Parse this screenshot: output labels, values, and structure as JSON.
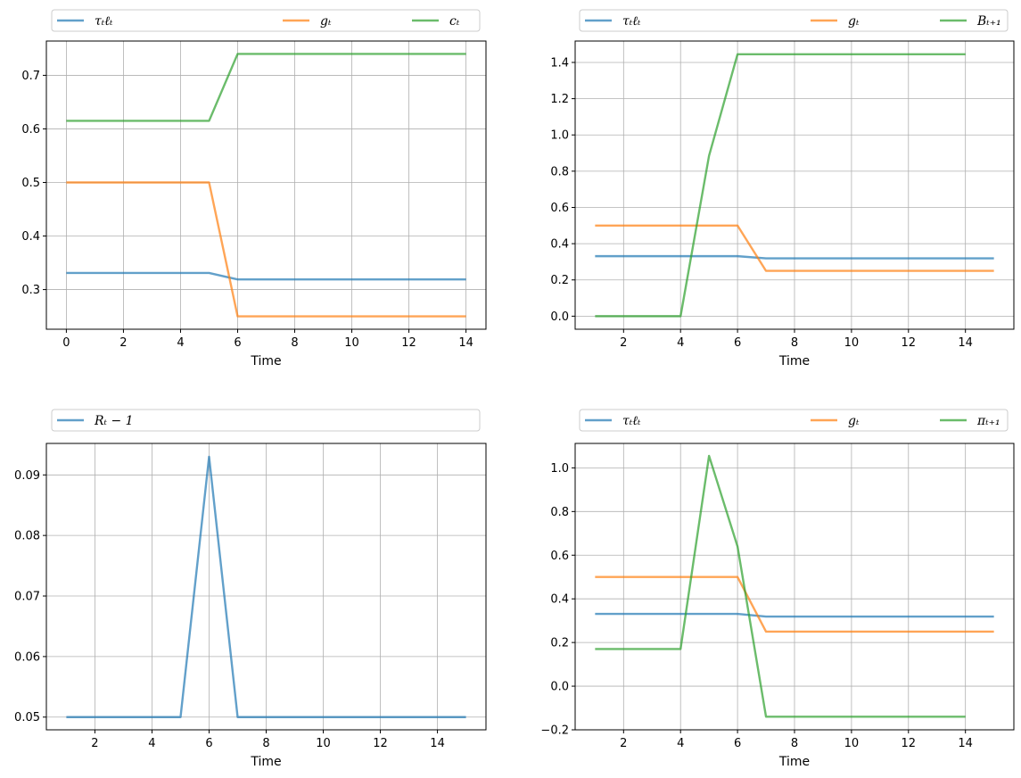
{
  "colors": {
    "blue": "#1f77b4",
    "orange": "#ff7f0e",
    "green": "#2ca02c",
    "grid": "#b0b0b0"
  },
  "chart_data": [
    {
      "type": "line",
      "xlabel": "Time",
      "xlim": [
        -0.7,
        14.7
      ],
      "ylim": [
        0.226,
        0.764
      ],
      "xticks": [
        0,
        2,
        4,
        6,
        8,
        10,
        12,
        14
      ],
      "yticks": [
        0.3,
        0.4,
        0.5,
        0.6,
        0.7
      ],
      "ytick_labels": [
        "0.3",
        "0.4",
        "0.5",
        "0.6",
        "0.7"
      ],
      "grid": true,
      "legend_position": "above",
      "series": [
        {
          "name": "τₜℓₜ",
          "color": "blue",
          "x": [
            0,
            1,
            2,
            3,
            4,
            5,
            6,
            7,
            8,
            9,
            10,
            11,
            12,
            13,
            14
          ],
          "y": [
            0.331,
            0.331,
            0.331,
            0.331,
            0.331,
            0.331,
            0.319,
            0.319,
            0.319,
            0.319,
            0.319,
            0.319,
            0.319,
            0.319,
            0.319
          ]
        },
        {
          "name": "gₜ",
          "color": "orange",
          "x": [
            0,
            1,
            2,
            3,
            4,
            5,
            6,
            7,
            8,
            9,
            10,
            11,
            12,
            13,
            14
          ],
          "y": [
            0.5,
            0.5,
            0.5,
            0.5,
            0.5,
            0.5,
            0.25,
            0.25,
            0.25,
            0.25,
            0.25,
            0.25,
            0.25,
            0.25,
            0.25
          ]
        },
        {
          "name": "cₜ",
          "color": "green",
          "x": [
            0,
            1,
            2,
            3,
            4,
            5,
            6,
            7,
            8,
            9,
            10,
            11,
            12,
            13,
            14
          ],
          "y": [
            0.615,
            0.615,
            0.615,
            0.615,
            0.615,
            0.615,
            0.74,
            0.74,
            0.74,
            0.74,
            0.74,
            0.74,
            0.74,
            0.74,
            0.74
          ]
        }
      ]
    },
    {
      "type": "line",
      "xlabel": "Time",
      "xlim": [
        0.3,
        15.7
      ],
      "ylim": [
        -0.072,
        1.518
      ],
      "xticks": [
        2,
        4,
        6,
        8,
        10,
        12,
        14
      ],
      "yticks": [
        0.0,
        0.2,
        0.4,
        0.6,
        0.8,
        1.0,
        1.2,
        1.4
      ],
      "ytick_labels": [
        "0.0",
        "0.2",
        "0.4",
        "0.6",
        "0.8",
        "1.0",
        "1.2",
        "1.4"
      ],
      "grid": true,
      "legend_position": "above",
      "series": [
        {
          "name": "τₜℓₜ",
          "color": "blue",
          "x": [
            1,
            2,
            3,
            4,
            5,
            6,
            7,
            8,
            9,
            10,
            11,
            12,
            13,
            14,
            15
          ],
          "y": [
            0.331,
            0.331,
            0.331,
            0.331,
            0.331,
            0.331,
            0.319,
            0.319,
            0.319,
            0.319,
            0.319,
            0.319,
            0.319,
            0.319,
            0.319
          ]
        },
        {
          "name": "gₜ",
          "color": "orange",
          "x": [
            1,
            2,
            3,
            4,
            5,
            6,
            7,
            8,
            9,
            10,
            11,
            12,
            13,
            14,
            15
          ],
          "y": [
            0.5,
            0.5,
            0.5,
            0.5,
            0.5,
            0.5,
            0.25,
            0.25,
            0.25,
            0.25,
            0.25,
            0.25,
            0.25,
            0.25,
            0.25
          ]
        },
        {
          "name": "Bₜ₊₁",
          "color": "green",
          "x": [
            1,
            2,
            3,
            4,
            5,
            6,
            7,
            8,
            9,
            10,
            11,
            12,
            13,
            14
          ],
          "y": [
            0,
            0,
            0,
            0,
            0.885,
            1.445,
            1.445,
            1.445,
            1.445,
            1.445,
            1.445,
            1.445,
            1.445,
            1.445
          ]
        }
      ]
    },
    {
      "type": "line",
      "xlabel": "Time",
      "xlim": [
        0.3,
        15.7
      ],
      "ylim": [
        0.0479,
        0.0952
      ],
      "xticks": [
        2,
        4,
        6,
        8,
        10,
        12,
        14
      ],
      "yticks": [
        0.05,
        0.06,
        0.07,
        0.08,
        0.09
      ],
      "ytick_labels": [
        "0.05",
        "0.06",
        "0.07",
        "0.08",
        "0.09"
      ],
      "grid": true,
      "legend_position": "above",
      "series": [
        {
          "name": "Rₜ − 1",
          "color": "blue",
          "x": [
            1,
            2,
            3,
            4,
            5,
            6,
            7,
            8,
            9,
            10,
            11,
            12,
            13,
            14,
            15
          ],
          "y": [
            0.05,
            0.05,
            0.05,
            0.05,
            0.05,
            0.093,
            0.05,
            0.05,
            0.05,
            0.05,
            0.05,
            0.05,
            0.05,
            0.05,
            0.05
          ]
        }
      ]
    },
    {
      "type": "line",
      "xlabel": "Time",
      "xlim": [
        0.3,
        15.7
      ],
      "ylim": [
        -0.2,
        1.112
      ],
      "xticks": [
        2,
        4,
        6,
        8,
        10,
        12,
        14
      ],
      "yticks": [
        -0.2,
        0.0,
        0.2,
        0.4,
        0.6,
        0.8,
        1.0
      ],
      "ytick_labels": [
        "−0.2",
        "0.0",
        "0.2",
        "0.4",
        "0.6",
        "0.8",
        "1.0"
      ],
      "grid": true,
      "legend_position": "above",
      "series": [
        {
          "name": "τₜℓₜ",
          "color": "blue",
          "x": [
            1,
            2,
            3,
            4,
            5,
            6,
            7,
            8,
            9,
            10,
            11,
            12,
            13,
            14,
            15
          ],
          "y": [
            0.331,
            0.331,
            0.331,
            0.331,
            0.331,
            0.331,
            0.319,
            0.319,
            0.319,
            0.319,
            0.319,
            0.319,
            0.319,
            0.319,
            0.319
          ]
        },
        {
          "name": "gₜ",
          "color": "orange",
          "x": [
            1,
            2,
            3,
            4,
            5,
            6,
            7,
            8,
            9,
            10,
            11,
            12,
            13,
            14,
            15
          ],
          "y": [
            0.5,
            0.5,
            0.5,
            0.5,
            0.5,
            0.5,
            0.25,
            0.25,
            0.25,
            0.25,
            0.25,
            0.25,
            0.25,
            0.25,
            0.25
          ]
        },
        {
          "name": "πₜ₊₁",
          "color": "green",
          "x": [
            1,
            2,
            3,
            4,
            5,
            6,
            7,
            8,
            9,
            10,
            11,
            12,
            13,
            14
          ],
          "y": [
            0.17,
            0.17,
            0.17,
            0.17,
            1.055,
            0.64,
            -0.14,
            -0.14,
            -0.14,
            -0.14,
            -0.14,
            -0.14,
            -0.14,
            -0.14
          ]
        }
      ]
    }
  ]
}
